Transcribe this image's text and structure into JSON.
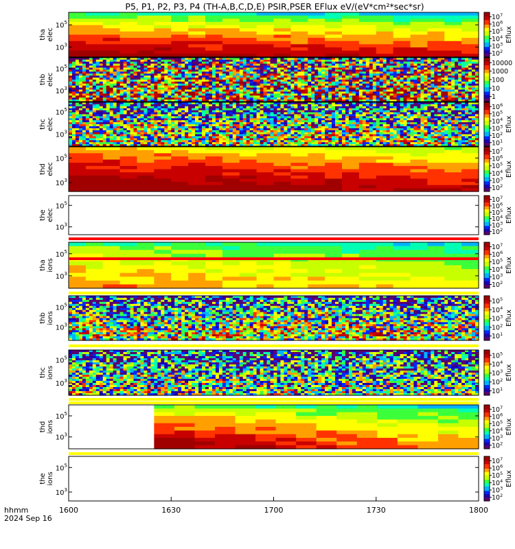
{
  "title": "P5, P1, P2, P3, P4 (TH-A,B,C,D,E) PSIR,PSER EFlux eV/(eV*cm²*sec*sr)",
  "footer": {
    "format_label": "hhmm",
    "date_label": "2024 Sep 16"
  },
  "colorbar_label": "Eflux",
  "chart_data": {
    "type": "heatmap",
    "x_axis": {
      "range": [
        "1600",
        "1800"
      ],
      "tick_labels": [
        "1600",
        "1630",
        "1700",
        "1730",
        "1800"
      ],
      "tick_values_minutes": [
        0,
        30,
        60,
        90,
        120
      ],
      "range_minutes": [
        0,
        120
      ]
    },
    "y_scale": "log",
    "colormap": [
      "#5a006e",
      "#1e00b4",
      "#0028ff",
      "#00b4ff",
      "#00ffb4",
      "#3cff3c",
      "#c8ff00",
      "#ffff00",
      "#ffa000",
      "#ff3200",
      "#c80000",
      "#a00000"
    ],
    "panels": [
      {
        "id": "tha-elec",
        "ylabel": [
          "tha",
          "elec"
        ],
        "y_ticks": [
          {
            "label": "10",
            "exp": "5",
            "pos": 0.72
          },
          {
            "label": "10",
            "exp": "3",
            "pos": 0.22
          }
        ],
        "cbar_ticks": [
          {
            "b": "10",
            "e": "7",
            "v": 7
          },
          {
            "b": "10",
            "e": "6",
            "v": 6
          },
          {
            "b": "10",
            "e": "5",
            "v": 5
          },
          {
            "b": "10",
            "e": "4",
            "v": 4
          },
          {
            "b": "10",
            "e": "3",
            "v": 3
          },
          {
            "b": "10",
            "e": "2",
            "v": 2
          }
        ],
        "cbar_range": [
          1.5,
          7.6
        ],
        "cbar_label": true,
        "empty": false,
        "columns": 24,
        "rows": 14,
        "top_level_start": 4.0,
        "top_level_end": 3.2,
        "bottom_level_start": 7.4,
        "bottom_level_end": 6.8,
        "noise": 0.05,
        "data_start_minutes": 0
      },
      {
        "id": "thb-elec",
        "ylabel": [
          "thb",
          "elec"
        ],
        "y_ticks": [
          {
            "label": "10",
            "exp": "5",
            "pos": 0.75
          },
          {
            "label": "10",
            "exp": "3",
            "pos": 0.25
          }
        ],
        "cbar_ticks": [
          {
            "b": "10000",
            "e": "",
            "v": 4
          },
          {
            "b": "1000",
            "e": "",
            "v": 3
          },
          {
            "b": "100",
            "e": "",
            "v": 2
          },
          {
            "b": "10",
            "e": "",
            "v": 1
          },
          {
            "b": "1",
            "e": "",
            "v": 0
          }
        ],
        "cbar_range": [
          -0.6,
          4.6
        ],
        "cbar_label": false,
        "empty": false,
        "columns": 120,
        "rows": 22,
        "top_level_start": 0.8,
        "top_level_end": 0.8,
        "bottom_level_start": 2.8,
        "bottom_level_end": 2.6,
        "noise": 0.5,
        "data_start_minutes": 0
      },
      {
        "id": "thc-elec",
        "ylabel": [
          "thc",
          "elec"
        ],
        "y_ticks": [
          {
            "label": "10",
            "exp": "5",
            "pos": 0.78
          },
          {
            "label": "10",
            "exp": "3",
            "pos": 0.27
          }
        ],
        "cbar_ticks": [
          {
            "b": "10",
            "e": "6",
            "v": 6
          },
          {
            "b": "10",
            "e": "5",
            "v": 5
          },
          {
            "b": "10",
            "e": "4",
            "v": 4
          },
          {
            "b": "10",
            "e": "3",
            "v": 3
          },
          {
            "b": "10",
            "e": "2",
            "v": 2
          },
          {
            "b": "10",
            "e": "1",
            "v": 1
          }
        ],
        "cbar_range": [
          0.5,
          6.6
        ],
        "cbar_label": true,
        "empty": false,
        "columns": 120,
        "rows": 22,
        "top_level_start": 1.8,
        "top_level_end": 1.8,
        "bottom_level_start": 3.9,
        "bottom_level_end": 3.8,
        "noise": 0.4,
        "data_start_minutes": 0
      },
      {
        "id": "thd-elec",
        "ylabel": [
          "thd",
          "elec"
        ],
        "y_ticks": [
          {
            "label": "10",
            "exp": "5",
            "pos": 0.75
          },
          {
            "label": "10",
            "exp": "3",
            "pos": 0.2
          }
        ],
        "cbar_ticks": [
          {
            "b": "10",
            "e": "7",
            "v": 7
          },
          {
            "b": "10",
            "e": "6",
            "v": 6
          },
          {
            "b": "10",
            "e": "5",
            "v": 5
          },
          {
            "b": "10",
            "e": "4",
            "v": 4
          },
          {
            "b": "10",
            "e": "3",
            "v": 3
          },
          {
            "b": "10",
            "e": "2",
            "v": 2
          }
        ],
        "cbar_range": [
          1.5,
          7.6
        ],
        "cbar_label": true,
        "empty": false,
        "columns": 24,
        "rows": 14,
        "top_level_start": 5.6,
        "top_level_end": 4.4,
        "bottom_level_start": 7.6,
        "bottom_level_end": 7.0,
        "noise": 0.05,
        "data_start_minutes": 0
      },
      {
        "id": "the-elec",
        "ylabel": [
          "the",
          "elec"
        ],
        "y_ticks": [
          {
            "label": "10",
            "exp": "5",
            "pos": 0.75
          },
          {
            "label": "10",
            "exp": "3",
            "pos": 0.2
          }
        ],
        "cbar_ticks": [
          {
            "b": "10",
            "e": "7",
            "v": 7
          },
          {
            "b": "10",
            "e": "6",
            "v": 6
          },
          {
            "b": "10",
            "e": "5",
            "v": 5
          },
          {
            "b": "10",
            "e": "4",
            "v": 4
          },
          {
            "b": "10",
            "e": "3",
            "v": 3
          },
          {
            "b": "10",
            "e": "2",
            "v": 2
          }
        ],
        "cbar_range": [
          1.5,
          7.6
        ],
        "cbar_label": true,
        "empty": true,
        "columns": 0,
        "rows": 0,
        "top_level_start": 0,
        "top_level_end": 0,
        "bottom_level_start": 0,
        "bottom_level_end": 0,
        "noise": 0,
        "data_start_minutes": 0
      },
      {
        "id": "tha-ions",
        "ylabel": [
          "tha",
          "ions"
        ],
        "y_ticks": [
          {
            "label": "10",
            "exp": "5",
            "pos": 0.75
          },
          {
            "label": "10",
            "exp": "3",
            "pos": 0.27
          }
        ],
        "cbar_ticks": [
          {
            "b": "10",
            "e": "7",
            "v": 7
          },
          {
            "b": "10",
            "e": "6",
            "v": 6
          },
          {
            "b": "10",
            "e": "5",
            "v": 5
          },
          {
            "b": "10",
            "e": "4",
            "v": 4
          },
          {
            "b": "10",
            "e": "3",
            "v": 3
          },
          {
            "b": "10",
            "e": "2",
            "v": 2
          }
        ],
        "cbar_range": [
          1.5,
          7.6
        ],
        "cbar_label": true,
        "empty": false,
        "columns": 24,
        "rows": 12,
        "top_level_start": 4.2,
        "top_level_end": 3.5,
        "bottom_level_start": 6.0,
        "bottom_level_end": 5.2,
        "noise": 0.05,
        "data_start_minutes": 0
      },
      {
        "id": "thb-ions",
        "ylabel": [
          "thb",
          "ions"
        ],
        "y_ticks": [
          {
            "label": "10",
            "exp": "5",
            "pos": 0.75
          },
          {
            "label": "10",
            "exp": "3",
            "pos": 0.3
          }
        ],
        "cbar_ticks": [
          {
            "b": "10",
            "e": "5",
            "v": 5
          },
          {
            "b": "10",
            "e": "4",
            "v": 4
          },
          {
            "b": "10",
            "e": "3",
            "v": 3
          },
          {
            "b": "10",
            "e": "2",
            "v": 2
          },
          {
            "b": "10",
            "e": "1",
            "v": 1
          }
        ],
        "cbar_range": [
          0.5,
          5.6
        ],
        "cbar_label": true,
        "empty": false,
        "columns": 120,
        "rows": 22,
        "top_level_start": 1.3,
        "top_level_end": 1.3,
        "bottom_level_start": 3.6,
        "bottom_level_end": 3.4,
        "noise": 0.4,
        "data_start_minutes": 0
      },
      {
        "id": "thc-ions",
        "ylabel": [
          "thc",
          "ions"
        ],
        "y_ticks": [
          {
            "label": "10",
            "exp": "5",
            "pos": 0.78
          },
          {
            "label": "10",
            "exp": "3",
            "pos": 0.27
          }
        ],
        "cbar_ticks": [
          {
            "b": "10",
            "e": "5",
            "v": 5
          },
          {
            "b": "10",
            "e": "4",
            "v": 4
          },
          {
            "b": "10",
            "e": "3",
            "v": 3
          },
          {
            "b": "10",
            "e": "2",
            "v": 2
          },
          {
            "b": "10",
            "e": "1",
            "v": 1
          }
        ],
        "cbar_range": [
          0.5,
          5.6
        ],
        "cbar_label": true,
        "empty": false,
        "columns": 120,
        "rows": 22,
        "top_level_start": 1.4,
        "top_level_end": 1.4,
        "bottom_level_start": 2.9,
        "bottom_level_end": 2.8,
        "noise": 0.4,
        "data_start_minutes": 0
      },
      {
        "id": "thd-ions",
        "ylabel": [
          "thd",
          "ions"
        ],
        "y_ticks": [
          {
            "label": "10",
            "exp": "5",
            "pos": 0.75
          },
          {
            "label": "10",
            "exp": "3",
            "pos": 0.27
          }
        ],
        "cbar_ticks": [
          {
            "b": "10",
            "e": "7",
            "v": 7
          },
          {
            "b": "10",
            "e": "6",
            "v": 6
          },
          {
            "b": "10",
            "e": "5",
            "v": 5
          },
          {
            "b": "10",
            "e": "4",
            "v": 4
          },
          {
            "b": "10",
            "e": "3",
            "v": 3
          },
          {
            "b": "10",
            "e": "2",
            "v": 2
          }
        ],
        "cbar_range": [
          1.5,
          7.6
        ],
        "cbar_label": true,
        "empty": false,
        "columns": 16,
        "rows": 12,
        "top_level_start": 4.4,
        "top_level_end": 3.5,
        "bottom_level_start": 7.5,
        "bottom_level_end": 5.8,
        "noise": 0.05,
        "data_start_minutes": 25
      },
      {
        "id": "the-ions",
        "ylabel": [
          "the",
          "ions"
        ],
        "y_ticks": [
          {
            "label": "10",
            "exp": "5",
            "pos": 0.75
          },
          {
            "label": "10",
            "exp": "3",
            "pos": 0.2
          }
        ],
        "cbar_ticks": [
          {
            "b": "10",
            "e": "7",
            "v": 7
          },
          {
            "b": "10",
            "e": "6",
            "v": 6
          },
          {
            "b": "10",
            "e": "5",
            "v": 5
          },
          {
            "b": "10",
            "e": "4",
            "v": 4
          },
          {
            "b": "10",
            "e": "3",
            "v": 3
          },
          {
            "b": "10",
            "e": "2",
            "v": 2
          }
        ],
        "cbar_range": [
          1.5,
          7.6
        ],
        "cbar_label": true,
        "empty": true,
        "columns": 0,
        "rows": 0,
        "top_level_start": 0,
        "top_level_end": 0,
        "bottom_level_start": 0,
        "bottom_level_end": 0,
        "noise": 0,
        "data_start_minutes": 0
      }
    ],
    "separators": [
      {
        "after_panel": 4,
        "colors": [
          "#ff0000",
          "#ff0000"
        ]
      },
      {
        "after_panel": 5,
        "colors": [
          "#ffff00"
        ]
      },
      {
        "after_panel": 6,
        "colors": [
          "#ffff00"
        ]
      },
      {
        "after_panel": 7,
        "colors": [
          "#ffff00",
          "#ffff00"
        ]
      },
      {
        "after_panel": 8,
        "colors": [
          "#ffff00"
        ]
      }
    ]
  }
}
